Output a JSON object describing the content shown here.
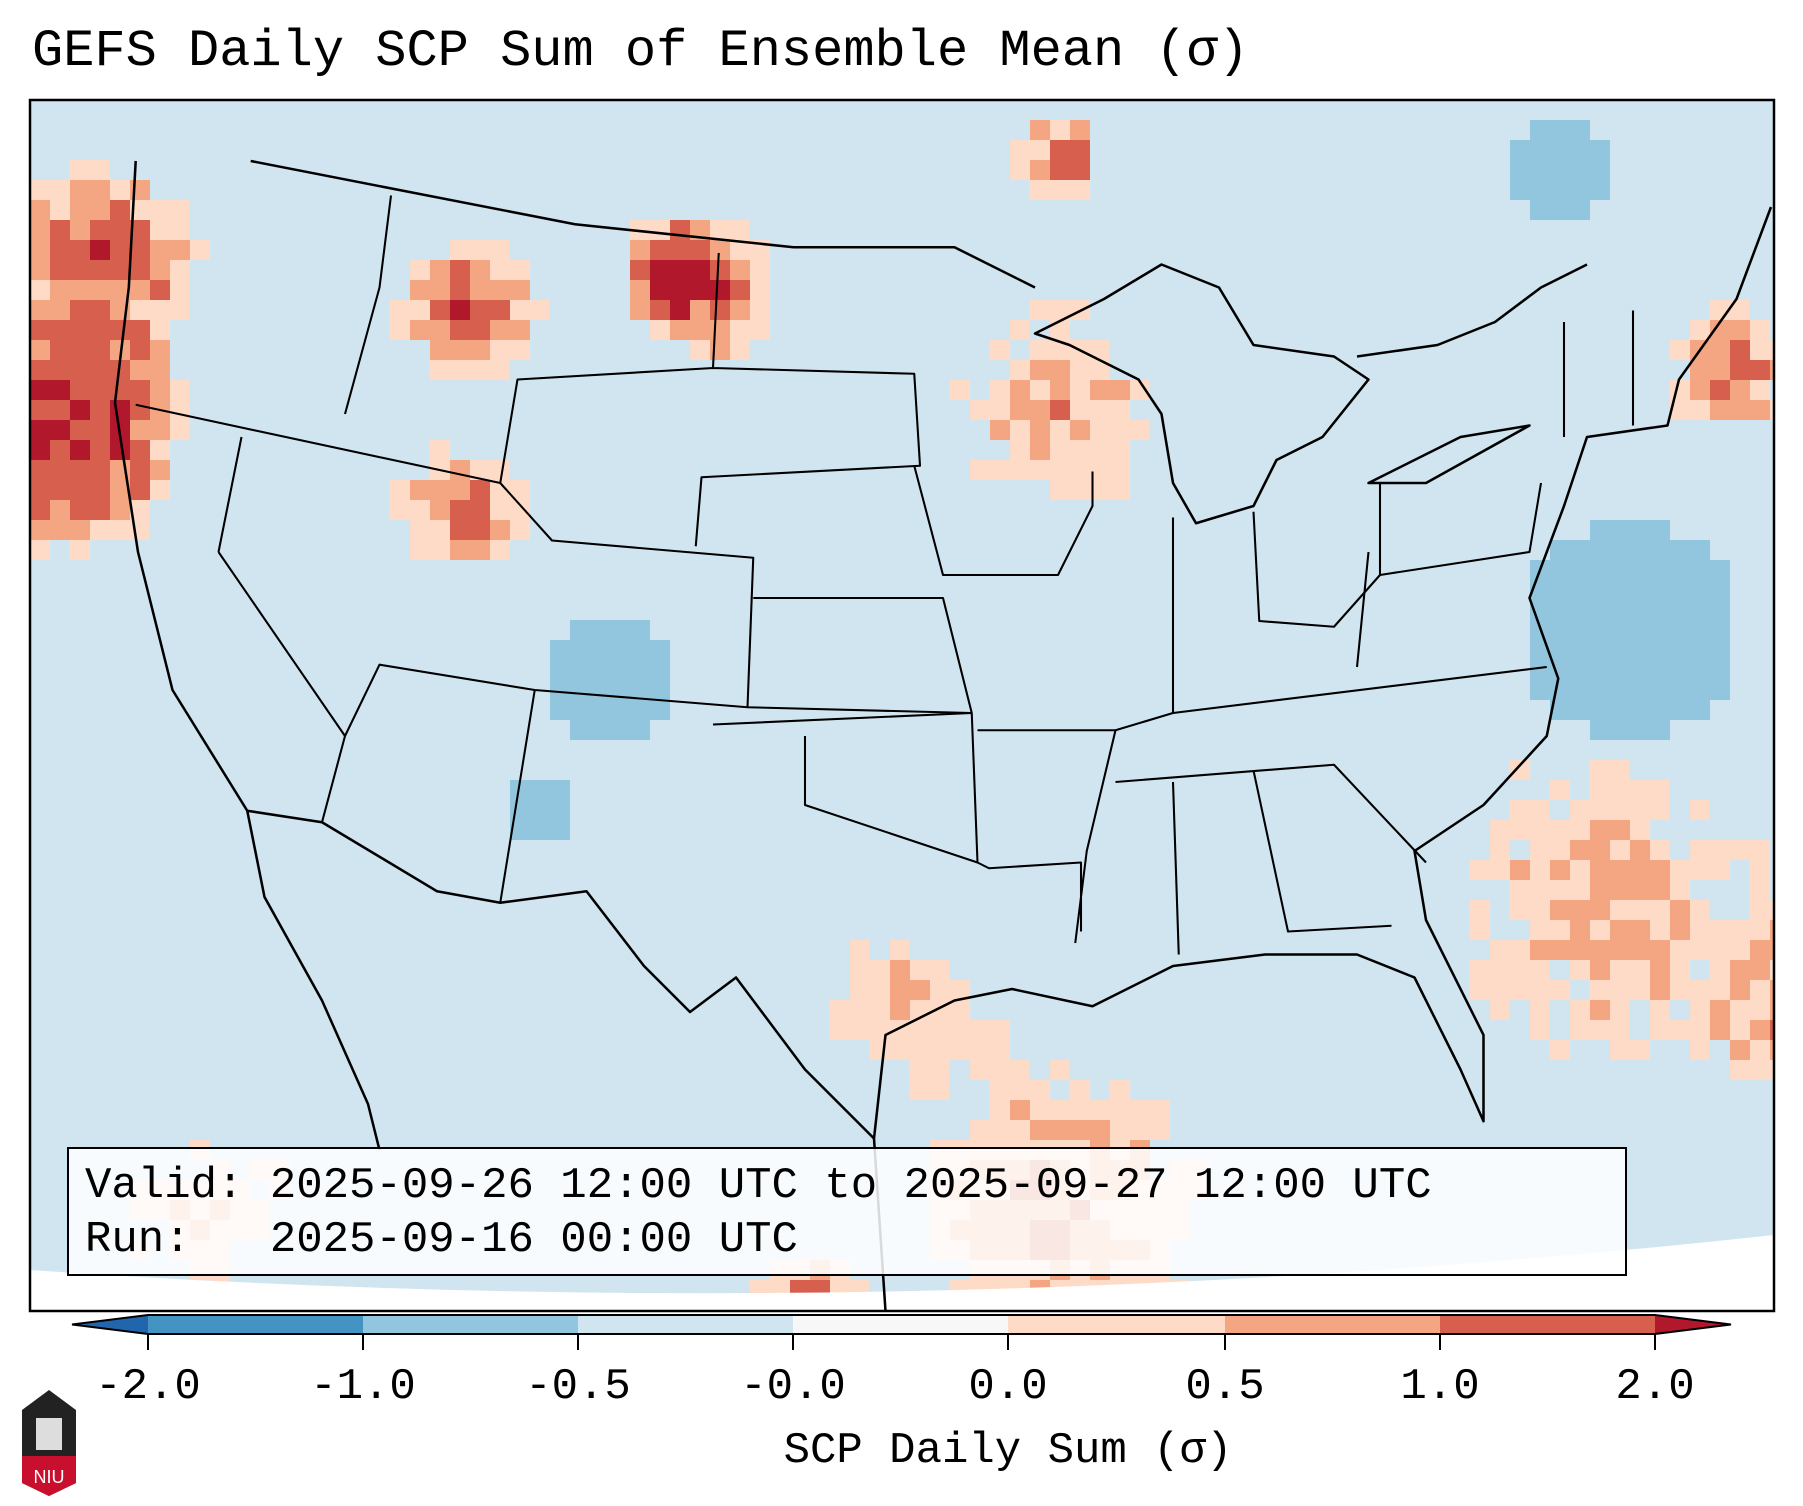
{
  "title": "GEFS Daily SCP Sum of Ensemble Mean (σ)",
  "info": {
    "valid_label": "Valid:",
    "valid_value": "2025-09-26 12:00 UTC to 2025-09-27 12:00 UTC",
    "run_label": "Run:",
    "run_value": "2025-09-16 00:00 UTC"
  },
  "logo_text": "NIU",
  "chart_data": {
    "type": "heatmap",
    "title": "GEFS Daily SCP Sum of Ensemble Mean (σ)",
    "xlabel": "SCP Daily Sum (σ)",
    "colorbar": {
      "ticks": [
        "-2.0",
        "-1.0",
        "-0.5",
        "-0.0",
        "0.0",
        "0.5",
        "1.0",
        "2.0"
      ],
      "bounds": [
        -2.0,
        -1.0,
        -0.5,
        -0.0,
        0.0,
        0.5,
        1.0,
        2.0
      ],
      "colors": [
        "#4393c3",
        "#92c5de",
        "#d1e5f0",
        "#f7f7f7",
        "#fddbc7",
        "#f4a582",
        "#d6604d"
      ],
      "extend_low_color": "#2166ac",
      "extend_high_color": "#b2182b",
      "extend": "both"
    },
    "region": "Contiguous United States",
    "background_value_range": [
      -0.5,
      -0.0
    ]
  }
}
